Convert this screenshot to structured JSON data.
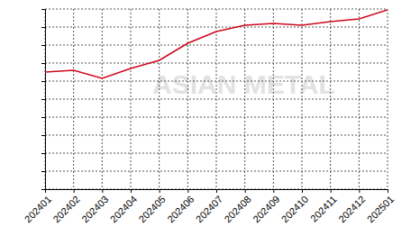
{
  "chart_data": {
    "type": "line",
    "categories": [
      "202401",
      "202402",
      "202403",
      "202404",
      "202405",
      "202406",
      "202407",
      "202408",
      "202409",
      "202410",
      "202411",
      "202412",
      "202501"
    ],
    "values": [
      6.5,
      6.6,
      6.15,
      6.7,
      7.15,
      8.1,
      8.75,
      9.1,
      9.2,
      9.1,
      9.3,
      9.45,
      9.95
    ],
    "color": "#cc0a1e",
    "ylim": [
      0,
      10
    ],
    "yticks": [
      0,
      1,
      2,
      3,
      4,
      5,
      6,
      7,
      8,
      9,
      10
    ],
    "grid": true,
    "tick_labels": "x",
    "annotations": [
      "ASIAN METAL"
    ]
  }
}
